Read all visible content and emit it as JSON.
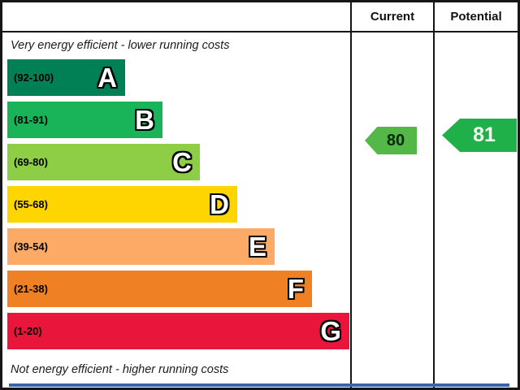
{
  "chart_data": {
    "type": "bar",
    "top_caption": "Very energy efficient - lower running costs",
    "bottom_caption": "Not energy efficient - higher running costs",
    "columns": {
      "current_label": "Current",
      "potential_label": "Potential"
    },
    "categories": [
      "A",
      "B",
      "C",
      "D",
      "E",
      "F",
      "G"
    ],
    "bands": [
      {
        "letter": "A",
        "range": "(92-100)",
        "min": 92,
        "max": 100,
        "color": "#008054"
      },
      {
        "letter": "B",
        "range": "(81-91)",
        "min": 81,
        "max": 91,
        "color": "#19b459"
      },
      {
        "letter": "C",
        "range": "(69-80)",
        "min": 69,
        "max": 80,
        "color": "#8dce46"
      },
      {
        "letter": "D",
        "range": "(55-68)",
        "min": 55,
        "max": 68,
        "color": "#ffd500"
      },
      {
        "letter": "E",
        "range": "(39-54)",
        "min": 39,
        "max": 54,
        "color": "#fcaa65"
      },
      {
        "letter": "F",
        "range": "(21-38)",
        "min": 21,
        "max": 38,
        "color": "#ef8023"
      },
      {
        "letter": "G",
        "range": "(1-20)",
        "min": 1,
        "max": 20,
        "color": "#e9153b"
      }
    ],
    "ratings": {
      "current": {
        "value": 80,
        "color": "#53b848"
      },
      "potential": {
        "value": 81,
        "color": "#1fb04a"
      }
    }
  }
}
